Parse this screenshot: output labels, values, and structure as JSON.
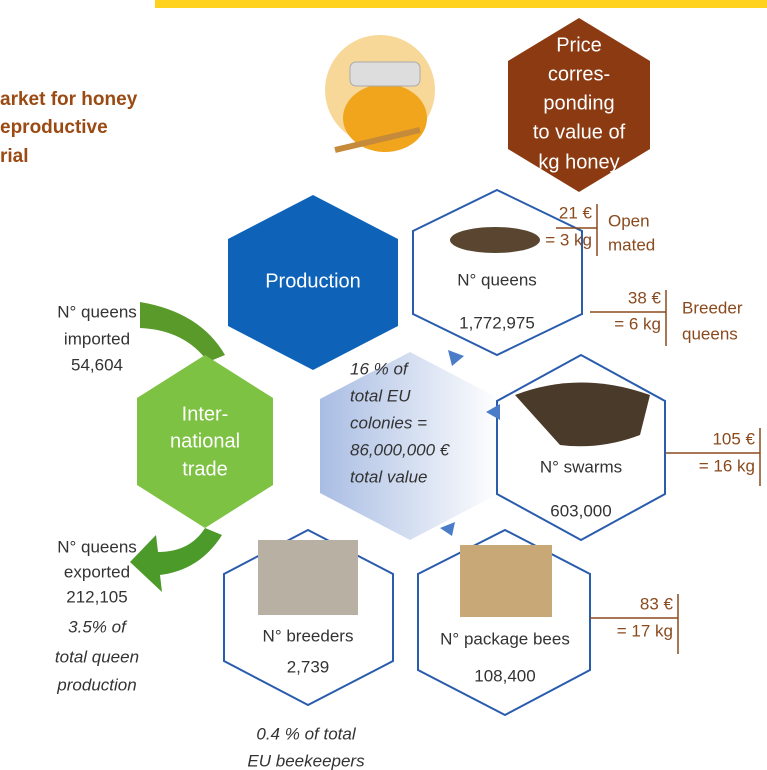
{
  "header": {
    "title_lines": [
      "arket for honey",
      "eproductive",
      "rial"
    ]
  },
  "price_hex": {
    "lines": [
      "Price",
      "corres-",
      "ponding",
      "to value of",
      "kg honey"
    ]
  },
  "production": {
    "label": "Production"
  },
  "trade": {
    "lines": [
      "Inter-",
      "national",
      "trade"
    ]
  },
  "center": {
    "lines": [
      "16 % of",
      "total EU",
      "colonies =",
      "86,000,000 €",
      "total value"
    ]
  },
  "queens": {
    "label": "N° queens",
    "value": "1,772,975"
  },
  "swarms": {
    "label": "N° swarms",
    "value": "603,000"
  },
  "breeders": {
    "label": "N° breeders",
    "value": "2,739",
    "note": [
      "0.4 % of total",
      "EU beekeepers"
    ]
  },
  "package_bees": {
    "label": "N° package bees",
    "value": "108,400"
  },
  "prices": [
    {
      "price": "21 €",
      "kg": "= 3 kg",
      "labels": [
        "Open",
        "mated"
      ]
    },
    {
      "price": "38 €",
      "kg": "= 6 kg",
      "labels": [
        "Breeder",
        "queens"
      ]
    },
    {
      "price": "105 €",
      "kg": "= 16 kg"
    },
    {
      "price": "83 €",
      "kg": "= 17 kg"
    }
  ],
  "imported": {
    "lines": [
      "N° queens",
      "imported",
      "54,604"
    ]
  },
  "exported": {
    "lines": [
      "N° queens",
      "exported",
      "212,105"
    ],
    "note": [
      "3.5% of",
      "total queen",
      "production"
    ]
  }
}
